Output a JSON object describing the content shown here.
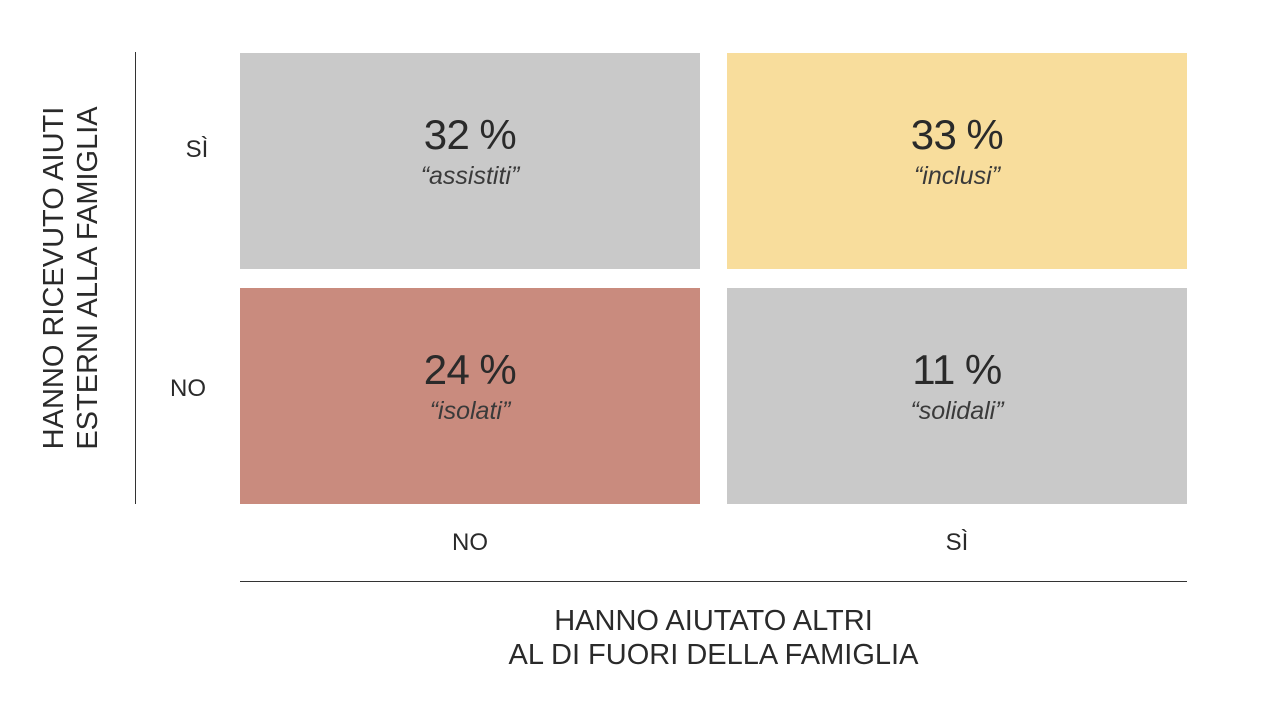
{
  "chart_data": {
    "type": "table",
    "title": "",
    "rows": [
      "SÌ",
      "NO"
    ],
    "columns": [
      "NO",
      "SÌ"
    ],
    "ylabel_lines": [
      "HANNO RICEVUTO AIUTI",
      "ESTERNI ALLA FAMIGLIA"
    ],
    "xlabel_lines": [
      "HANNO AIUTATO ALTRI",
      "AL DI FUORI DELLA FAMIGLIA"
    ],
    "cells": [
      {
        "row": "SÌ",
        "column": "NO",
        "value": 32,
        "unit": "%",
        "label": "“assistiti”",
        "color": "#c9c9c9"
      },
      {
        "row": "SÌ",
        "column": "SÌ",
        "value": 33,
        "unit": "%",
        "label": "“inclusi”",
        "color": "#f8dd9c"
      },
      {
        "row": "NO",
        "column": "NO",
        "value": 24,
        "unit": "%",
        "label": "“isolati”",
        "color": "#c98b7e"
      },
      {
        "row": "NO",
        "column": "SÌ",
        "value": 11,
        "unit": "%",
        "label": "“solidali”",
        "color": "#c9c9c9"
      }
    ]
  }
}
